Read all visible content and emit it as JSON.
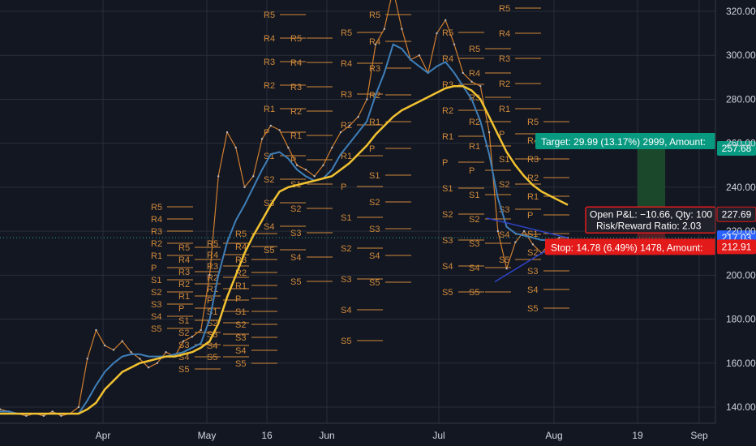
{
  "colors": {
    "background": "#131722",
    "grid": "#2a2e39",
    "price_line": "#d07e2e",
    "ma_blue": "#3f7fb8",
    "ma_yellow": "#f2c230",
    "candle_up": "#b6bac4",
    "candle_down": "#e08b8b",
    "pivot": "#d08a3a",
    "profit_zone": "#1d4d2b",
    "loss_zone": "#5c1f26",
    "target_tag": "#089981",
    "stop_tag": "#e31a1a",
    "current_tag": "#2962ff",
    "trend_line": "#2f44c9"
  },
  "chart_data": {
    "type": "line",
    "title": "",
    "xlabel": "",
    "ylabel": "",
    "ylim": [
      133,
      330
    ],
    "x_ticks": [
      "Apr",
      "May",
      "16",
      "Jun",
      "Jul",
      "Aug",
      "19",
      "Sep"
    ],
    "y_ticks": [
      140,
      160,
      180,
      200,
      220,
      240,
      260,
      280,
      300,
      320
    ],
    "series": [
      {
        "values": [
          139,
          138,
          137,
          136,
          137,
          136,
          138,
          136,
          137,
          140,
          162,
          175,
          168,
          166,
          170,
          165,
          162,
          158,
          160,
          165,
          163,
          170,
          172,
          175,
          200,
          245,
          265,
          258,
          240,
          245,
          262,
          268,
          266,
          258,
          250,
          248,
          245,
          250,
          258,
          265,
          268,
          272,
          280,
          305,
          312,
          330,
          312,
          298,
          300,
          292,
          310,
          316,
          305,
          292,
          288,
          286,
          265,
          220,
          203,
          215,
          220,
          214,
          210,
          215,
          217,
          217
        ]
      },
      {
        "values": [
          138,
          138,
          137,
          137,
          137,
          137,
          137,
          137,
          137,
          137,
          143,
          150,
          156,
          160,
          163,
          164,
          164,
          163,
          163,
          163,
          164,
          165,
          167,
          169,
          180,
          200,
          215,
          225,
          232,
          240,
          248,
          255,
          256,
          253,
          248,
          245,
          243,
          244,
          248,
          255,
          260,
          265,
          270,
          282,
          292,
          305,
          303,
          298,
          295,
          292,
          295,
          297,
          292,
          286,
          280,
          270,
          255,
          235,
          222,
          219,
          218,
          217,
          216,
          216,
          216,
          216
        ]
      },
      {
        "values": [
          137,
          137,
          137,
          137,
          137,
          137,
          137,
          137,
          137,
          137,
          139,
          142,
          148,
          152,
          156,
          158,
          160,
          161,
          162,
          163,
          163,
          164,
          165,
          167,
          170,
          178,
          190,
          200,
          210,
          218,
          225,
          232,
          238,
          240,
          241,
          242,
          243,
          244,
          245,
          248,
          251,
          255,
          259,
          264,
          268,
          272,
          275,
          277,
          279,
          281,
          283,
          285,
          286,
          286,
          284,
          280,
          272,
          264,
          256,
          250,
          245,
          241,
          238,
          236,
          234,
          232
        ]
      }
    ],
    "pivot_labels": [
      "R5",
      "R4",
      "R3",
      "R2",
      "R1",
      "P",
      "S1",
      "S2",
      "S3",
      "S4",
      "S5"
    ],
    "annotations": {
      "target": "Target: 29.99 (13.17%) 2999, Amount:",
      "open_pnl": "Open P&L: −10.66, Qty: 100",
      "risk_reward": "Risk/Reward Ratio: 2.03",
      "stop": "Stop: 14.78 (6.49%) 1478, Amount:"
    },
    "price_tags": {
      "target": "257.68",
      "entry": "227.69",
      "current": "217.03",
      "stop": "212.91"
    },
    "target_value": 257.68,
    "entry_value": 227.69,
    "current_value": 217.03,
    "stop_value": 212.91
  }
}
